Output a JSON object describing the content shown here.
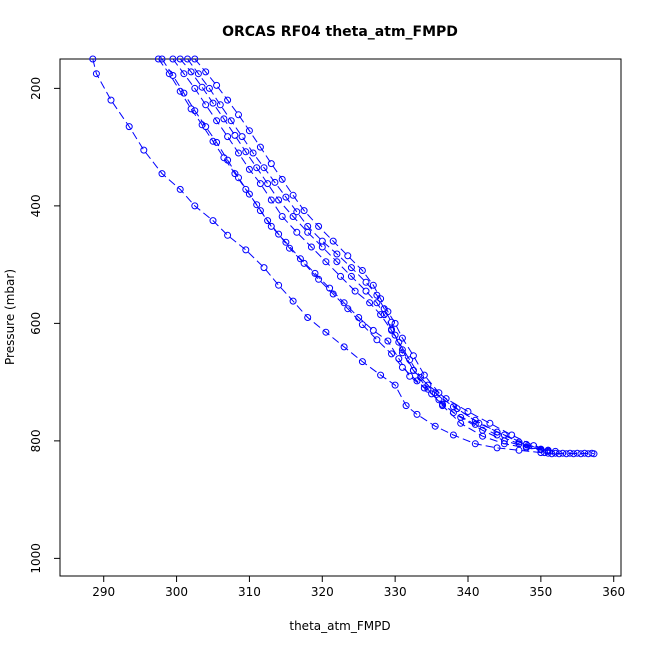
{
  "chart_data": {
    "type": "line",
    "title": "ORCAS RF04 theta_atm_FMPD",
    "xlabel": "theta_atm_FMPD",
    "ylabel": "Pressure (mbar)",
    "xlim": [
      284,
      361
    ],
    "ylim": [
      1030,
      150
    ],
    "y_reversed": true,
    "x_ticks": [
      290,
      300,
      310,
      320,
      330,
      340,
      350,
      360
    ],
    "y_ticks": [
      200,
      400,
      600,
      800,
      1000
    ],
    "grid": false,
    "legend": "none",
    "line_style": "dashed",
    "marker": "open-circle",
    "color": "#0000ff",
    "series": [
      {
        "values": [
          [
            288.5,
            150
          ],
          [
            289,
            175
          ],
          [
            291,
            220
          ],
          [
            293.5,
            265
          ],
          [
            295.5,
            305
          ],
          [
            298,
            345
          ],
          [
            300.5,
            372
          ],
          [
            302.5,
            400
          ],
          [
            305,
            425
          ],
          [
            307,
            450
          ],
          [
            309.5,
            475
          ],
          [
            312,
            505
          ],
          [
            314,
            535
          ],
          [
            316,
            562
          ],
          [
            318,
            590
          ],
          [
            320.5,
            615
          ],
          [
            323,
            640
          ],
          [
            325.5,
            665
          ],
          [
            328,
            688
          ],
          [
            330,
            705
          ],
          [
            331.5,
            740
          ],
          [
            333,
            755
          ],
          [
            335.5,
            775
          ],
          [
            338,
            790
          ],
          [
            341,
            805
          ],
          [
            344,
            812
          ],
          [
            347,
            816
          ],
          [
            350,
            820
          ]
        ]
      },
      {
        "values": [
          [
            297.5,
            150
          ],
          [
            299,
            175
          ],
          [
            300.5,
            205
          ],
          [
            302,
            235
          ],
          [
            303.5,
            262
          ],
          [
            305,
            290
          ],
          [
            306.5,
            318
          ],
          [
            308,
            345
          ],
          [
            309.5,
            372
          ],
          [
            311,
            398
          ],
          [
            312.5,
            425
          ],
          [
            314,
            448
          ],
          [
            315.5,
            472
          ],
          [
            317.5,
            498
          ],
          [
            319.5,
            525
          ],
          [
            321.5,
            550
          ],
          [
            323.5,
            575
          ],
          [
            325.5,
            602
          ],
          [
            327.5,
            628
          ],
          [
            329.5,
            652
          ],
          [
            331,
            675
          ],
          [
            333,
            698
          ],
          [
            335,
            720
          ],
          [
            336.5,
            738
          ],
          [
            339,
            760
          ],
          [
            342,
            782
          ],
          [
            345,
            800
          ],
          [
            348,
            810
          ],
          [
            351,
            816
          ]
        ]
      },
      {
        "values": [
          [
            298,
            150
          ],
          [
            299.5,
            178
          ],
          [
            301,
            208
          ],
          [
            302.5,
            238
          ],
          [
            304,
            265
          ],
          [
            305.5,
            292
          ],
          [
            307,
            322
          ],
          [
            308.5,
            352
          ],
          [
            310,
            380
          ],
          [
            311.5,
            408
          ],
          [
            313,
            435
          ],
          [
            315,
            462
          ],
          [
            317,
            490
          ],
          [
            319,
            515
          ],
          [
            321,
            540
          ],
          [
            323,
            565
          ],
          [
            325,
            590
          ],
          [
            327,
            612
          ],
          [
            329,
            630
          ],
          [
            330.5,
            660
          ],
          [
            332,
            690
          ],
          [
            334,
            710
          ],
          [
            336,
            730
          ],
          [
            338,
            752
          ],
          [
            341,
            772
          ],
          [
            344,
            790
          ],
          [
            347,
            805
          ],
          [
            350,
            815
          ]
        ]
      },
      {
        "values": [
          [
            299.5,
            150
          ],
          [
            301,
            175
          ],
          [
            302.5,
            200
          ],
          [
            304,
            228
          ],
          [
            305.5,
            255
          ],
          [
            307,
            282
          ],
          [
            308.5,
            310
          ],
          [
            310,
            338
          ],
          [
            311.5,
            362
          ],
          [
            313,
            390
          ],
          [
            314.5,
            418
          ],
          [
            316.5,
            445
          ],
          [
            318.5,
            470
          ],
          [
            320.5,
            495
          ],
          [
            322.5,
            520
          ],
          [
            324.5,
            545
          ],
          [
            326.5,
            565
          ],
          [
            328,
            585
          ],
          [
            329.5,
            612
          ],
          [
            331,
            645
          ],
          [
            332.5,
            680
          ],
          [
            334.5,
            705
          ],
          [
            337,
            728
          ],
          [
            340,
            750
          ],
          [
            343,
            770
          ],
          [
            346,
            790
          ],
          [
            349,
            808
          ],
          [
            352,
            818
          ]
        ]
      },
      {
        "values": [
          [
            300.5,
            150
          ],
          [
            302,
            172
          ],
          [
            303.5,
            198
          ],
          [
            305,
            225
          ],
          [
            306.5,
            252
          ],
          [
            308,
            280
          ],
          [
            309.5,
            308
          ],
          [
            311,
            335
          ],
          [
            312.5,
            362
          ],
          [
            314,
            390
          ],
          [
            316,
            418
          ],
          [
            318,
            445
          ],
          [
            320,
            470
          ],
          [
            322,
            495
          ],
          [
            324,
            520
          ],
          [
            326,
            545
          ],
          [
            327.5,
            565
          ],
          [
            328.5,
            585
          ],
          [
            329.5,
            610
          ],
          [
            330.5,
            632
          ],
          [
            332,
            662
          ],
          [
            333.5,
            692
          ],
          [
            335.5,
            718
          ],
          [
            338,
            742
          ],
          [
            341,
            765
          ],
          [
            344,
            785
          ],
          [
            347,
            802
          ],
          [
            350,
            814
          ]
        ]
      },
      {
        "values": [
          [
            301.5,
            150
          ],
          [
            303,
            175
          ],
          [
            304.5,
            200
          ],
          [
            306,
            228
          ],
          [
            307.5,
            255
          ],
          [
            309,
            282
          ],
          [
            310.5,
            310
          ],
          [
            312,
            335
          ],
          [
            313.5,
            360
          ],
          [
            315,
            385
          ],
          [
            316.5,
            410
          ],
          [
            318,
            435
          ],
          [
            320,
            460
          ],
          [
            322,
            482
          ],
          [
            324,
            505
          ],
          [
            326,
            530
          ],
          [
            327.5,
            552
          ],
          [
            328.5,
            575
          ],
          [
            329.5,
            598
          ],
          [
            330,
            620
          ],
          [
            331,
            650
          ],
          [
            332.5,
            680
          ],
          [
            334.5,
            712
          ],
          [
            336.5,
            740
          ],
          [
            339,
            770
          ],
          [
            342,
            792
          ],
          [
            345,
            805
          ],
          [
            348,
            812
          ],
          [
            351,
            818
          ]
        ]
      },
      {
        "values": [
          [
            302.5,
            150
          ],
          [
            304,
            172
          ],
          [
            305.5,
            195
          ],
          [
            307,
            220
          ],
          [
            308.5,
            245
          ],
          [
            310,
            272
          ],
          [
            311.5,
            300
          ],
          [
            313,
            328
          ],
          [
            314.5,
            355
          ],
          [
            316,
            382
          ],
          [
            317.5,
            408
          ],
          [
            319.5,
            435
          ],
          [
            321.5,
            460
          ],
          [
            323.5,
            485
          ],
          [
            325.5,
            510
          ],
          [
            327,
            535
          ],
          [
            328,
            558
          ],
          [
            329,
            580
          ],
          [
            330,
            600
          ],
          [
            331,
            625
          ],
          [
            332.5,
            655
          ],
          [
            334,
            688
          ],
          [
            336,
            718
          ],
          [
            338.5,
            745
          ],
          [
            341.5,
            770
          ],
          [
            345,
            790
          ],
          [
            348,
            806
          ],
          [
            351,
            816
          ]
        ]
      },
      {
        "values": [
          [
            350.5,
            820
          ],
          [
            351,
            821
          ],
          [
            351.5,
            822
          ],
          [
            352,
            821
          ],
          [
            352.5,
            822
          ],
          [
            353,
            821
          ],
          [
            353.5,
            822
          ],
          [
            354,
            821
          ],
          [
            354.5,
            822
          ],
          [
            355,
            821
          ],
          [
            355.5,
            822
          ],
          [
            356,
            821
          ],
          [
            356.5,
            822
          ],
          [
            357,
            821
          ],
          [
            357.3,
            822
          ]
        ]
      }
    ]
  }
}
